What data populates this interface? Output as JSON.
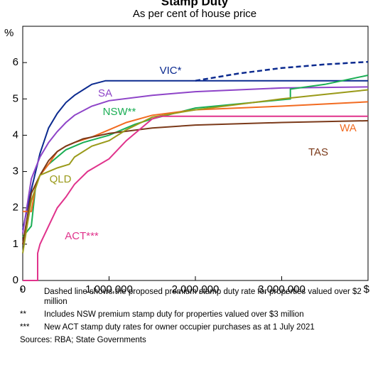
{
  "chart_data": {
    "type": "line",
    "title": "Stamp Duty",
    "subtitle": "As per cent of house price",
    "y_label": "%",
    "xlim": [
      0,
      4000000
    ],
    "ylim": [
      0,
      7
    ],
    "xticks": [
      0,
      {
        "value": 1000000,
        "label": "1,000,000"
      },
      {
        "value": 2000000,
        "label": "2,000,000"
      },
      {
        "value": 3000000,
        "label": "3,000,000"
      },
      {
        "value": 4000000,
        "label": "$"
      }
    ],
    "yticks": [
      0,
      1,
      2,
      3,
      4,
      5,
      6
    ],
    "grid": false,
    "series": [
      {
        "name": "VIC*",
        "color": "#0b2a8f",
        "x": [
          0,
          100000,
          200000,
          300000,
          400000,
          500000,
          600000,
          700000,
          800000,
          960000,
          4000000
        ],
        "values": [
          1.4,
          2.5,
          3.5,
          4.2,
          4.6,
          4.9,
          5.1,
          5.25,
          5.4,
          5.5,
          5.5
        ],
        "proposed": {
          "x": [
            2000000,
            2500000,
            3000000,
            3500000,
            4000000
          ],
          "values": [
            5.5,
            5.7,
            5.85,
            5.95,
            6.02
          ]
        }
      },
      {
        "name": "SA",
        "color": "#8e44c8",
        "x": [
          0,
          100000,
          200000,
          300000,
          400000,
          500000,
          600000,
          800000,
          1000000,
          1500000,
          2000000,
          3000000,
          4000000
        ],
        "values": [
          1.3,
          2.8,
          3.4,
          3.8,
          4.1,
          4.35,
          4.55,
          4.8,
          4.95,
          5.1,
          5.2,
          5.3,
          5.33
        ]
      },
      {
        "name": "NSW**",
        "color": "#1aae54",
        "x": [
          0,
          100000,
          150000,
          200000,
          300000,
          500000,
          700000,
          1000000,
          1300000,
          1500000,
          2000000,
          3100000,
          3100000,
          3500000,
          4000000
        ],
        "values": [
          1.2,
          1.5,
          2.6,
          2.9,
          3.2,
          3.6,
          3.8,
          4.0,
          4.3,
          4.45,
          4.75,
          5.0,
          5.27,
          5.4,
          5.65
        ]
      },
      {
        "name": "WA",
        "color": "#f26b21",
        "x": [
          0,
          100000,
          150000,
          200000,
          300000,
          400000,
          500000,
          600000,
          800000,
          1000000,
          1200000,
          1500000,
          2000000,
          3000000,
          4000000
        ],
        "values": [
          1.9,
          1.9,
          2.6,
          2.9,
          3.2,
          3.55,
          3.7,
          3.8,
          3.95,
          4.15,
          4.35,
          4.55,
          4.7,
          4.8,
          4.92
        ]
      },
      {
        "name": "TAS",
        "color": "#7b3a1a",
        "x": [
          0,
          100000,
          200000,
          300000,
          400000,
          500000,
          700000,
          1000000,
          1500000,
          2000000,
          3000000,
          4000000
        ],
        "values": [
          1.0,
          2.4,
          2.9,
          3.3,
          3.55,
          3.7,
          3.9,
          4.05,
          4.2,
          4.28,
          4.35,
          4.4
        ]
      },
      {
        "name": "QLD",
        "color": "#9a9a1a",
        "x": [
          0,
          50000,
          100000,
          200000,
          300000,
          400000,
          540000,
          600000,
          800000,
          1000000,
          1200000,
          1500000,
          2000000,
          3000000,
          4000000
        ],
        "values": [
          0.75,
          1.5,
          2.2,
          2.9,
          3.0,
          3.1,
          3.2,
          3.4,
          3.7,
          3.85,
          4.15,
          4.5,
          4.7,
          5.0,
          5.25
        ]
      },
      {
        "name": "ACT***",
        "color": "#e0338c",
        "x": [
          0,
          173000,
          173000,
          200000,
          300000,
          400000,
          500000,
          600000,
          750000,
          1000000,
          1200000,
          1500000,
          1600000,
          4000000
        ],
        "values": [
          0,
          0,
          0.75,
          1.0,
          1.5,
          2.0,
          2.3,
          2.65,
          3.0,
          3.35,
          3.85,
          4.45,
          4.52,
          4.52
        ]
      }
    ],
    "footnotes": [
      {
        "marker": "*",
        "text": "Dashed line shows the proposed premium stamp duty rate for properties valued over $2 million"
      },
      {
        "marker": "**",
        "text": "Includes NSW premium stamp duty for properties valued over $3 million"
      },
      {
        "marker": "***",
        "text": "New ACT stamp duty rates for owner occupier purchases as at 1 July 2021"
      }
    ],
    "source": "Sources: RBA; State Governments"
  }
}
